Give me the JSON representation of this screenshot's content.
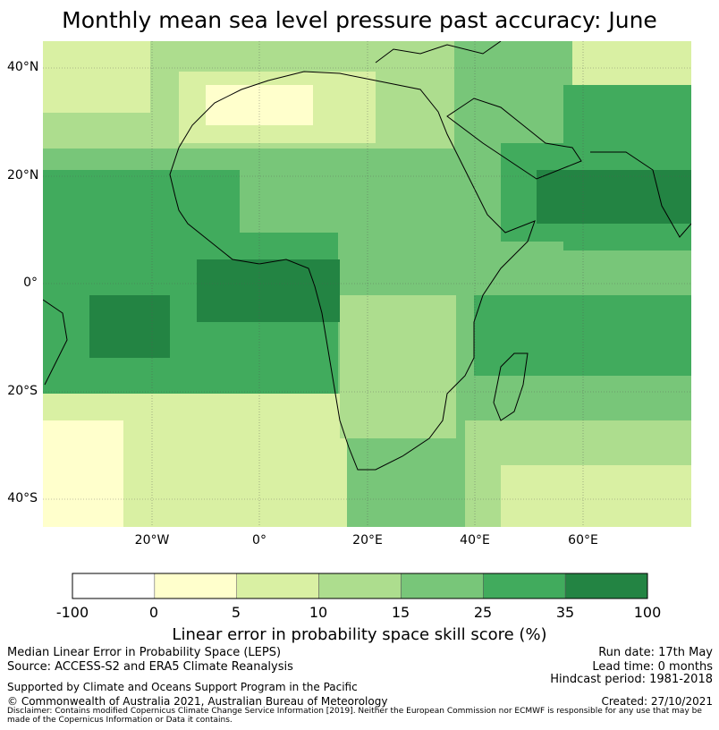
{
  "title": "Monthly mean sea level pressure past accuracy: June",
  "map": {
    "lat_labels": [
      "40°N",
      "20°N",
      "0°",
      "20°S",
      "40°S"
    ],
    "lon_labels": [
      "20°W",
      "0°",
      "20°E",
      "40°E",
      "60°E"
    ],
    "extent": {
      "lon": [
        -40,
        80
      ],
      "lat": [
        -45,
        45
      ]
    },
    "gridlines": true
  },
  "colorbar": {
    "tick_labels": [
      "-100",
      "0",
      "5",
      "10",
      "15",
      "25",
      "35",
      "100"
    ],
    "colors": [
      "#ffffff",
      "#ffffcc",
      "#d9f0a3",
      "#addd8e",
      "#78c679",
      "#41ab5d",
      "#238443"
    ],
    "label": "Linear error in probability space skill score (%)"
  },
  "footer": {
    "line1_left": "Median Linear Error in Probability Space (LEPS)",
    "line2_left": "Source: ACCESS-S2 and ERA5 Climate Reanalysis",
    "line1_right": "Run date: 17th May",
    "line2_right": "Lead time: 0 months",
    "line3_right": "Hindcast period: 1981-2018",
    "support": "Supported by Climate and Oceans Support Program in the Pacific",
    "copyright": "© Commonwealth of Australia 2021, Australian Bureau of Meteorology",
    "created": "Created: 27/10/2021",
    "disclaimer": "Disclaimer: Contains modified Copernicus Climate Change Service Information [2019]. Neither the European Commission nor ECMWF is responsible for any use that may be made of the Copernicus Information or Data it contains."
  }
}
